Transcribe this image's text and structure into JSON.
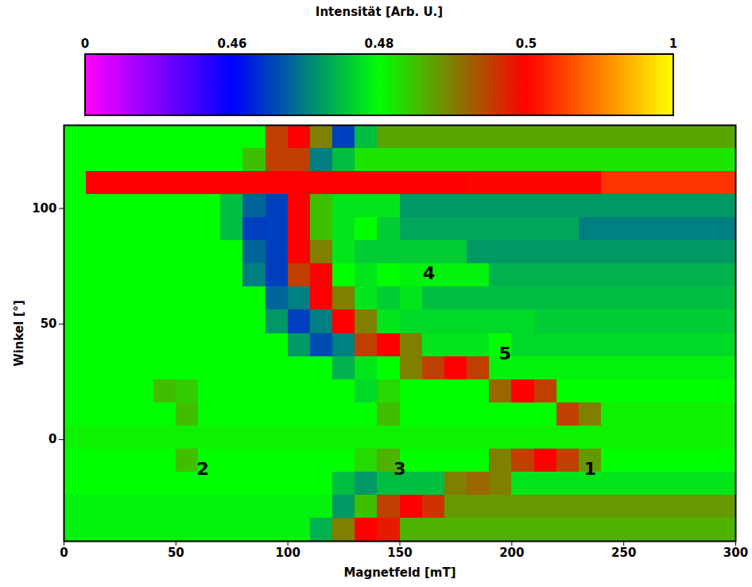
{
  "chart_data": {
    "type": "heatmap",
    "x_label": "Magnetfeld [mT]",
    "y_label": "Winkel [°]",
    "xlim": [
      0,
      300
    ],
    "ylim": [
      -44,
      136
    ],
    "xticks": [
      0,
      50,
      100,
      150,
      200,
      250,
      300
    ],
    "yticks": [
      0,
      50,
      100
    ],
    "x_bins": [
      0,
      10,
      20,
      30,
      40,
      50,
      60,
      70,
      80,
      90,
      100,
      110,
      120,
      130,
      140,
      150,
      160,
      170,
      180,
      190,
      200,
      210,
      220,
      230,
      240,
      250,
      260,
      270,
      280,
      290,
      300
    ],
    "y_bins": [
      -44,
      -34,
      -24,
      -14,
      -4,
      6,
      16,
      26,
      36,
      46,
      56,
      66,
      76,
      86,
      96,
      106,
      116,
      126,
      136
    ],
    "values": [
      [
        0.479,
        0.479,
        0.479,
        0.479,
        0.479,
        0.479,
        0.479,
        0.479,
        0.479,
        0.479,
        0.479,
        0.474,
        0.49,
        0.5,
        0.498,
        0.486,
        0.486,
        0.486,
        0.486,
        0.486,
        0.486,
        0.486,
        0.486,
        0.486,
        0.486,
        0.486,
        0.486,
        0.486,
        0.486,
        0.486
      ],
      [
        0.479,
        0.479,
        0.479,
        0.479,
        0.479,
        0.479,
        0.479,
        0.479,
        0.479,
        0.479,
        0.479,
        0.479,
        0.472,
        0.485,
        0.495,
        0.5,
        0.496,
        0.488,
        0.488,
        0.488,
        0.488,
        0.488,
        0.488,
        0.488,
        0.488,
        0.488,
        0.488,
        0.488,
        0.488,
        0.488
      ],
      [
        0.48,
        0.48,
        0.48,
        0.48,
        0.48,
        0.48,
        0.48,
        0.48,
        0.48,
        0.48,
        0.48,
        0.48,
        0.475,
        0.472,
        0.475,
        0.475,
        0.475,
        0.49,
        0.492,
        0.49,
        0.478,
        0.478,
        0.478,
        0.478,
        0.478,
        0.478,
        0.478,
        0.478,
        0.478,
        0.478
      ],
      [
        0.48,
        0.48,
        0.48,
        0.48,
        0.48,
        0.485,
        0.48,
        0.48,
        0.48,
        0.48,
        0.48,
        0.48,
        0.48,
        0.483,
        0.486,
        0.48,
        0.48,
        0.48,
        0.48,
        0.49,
        0.495,
        0.5,
        0.495,
        0.488,
        0.48,
        0.48,
        0.48,
        0.48,
        0.48,
        0.48
      ],
      [
        0.481,
        0.481,
        0.481,
        0.481,
        0.481,
        0.481,
        0.481,
        0.481,
        0.481,
        0.481,
        0.481,
        0.481,
        0.481,
        0.481,
        0.481,
        0.481,
        0.481,
        0.481,
        0.481,
        0.481,
        0.481,
        0.481,
        0.481,
        0.481,
        0.481,
        0.481,
        0.481,
        0.481,
        0.481,
        0.481
      ],
      [
        0.48,
        0.48,
        0.48,
        0.48,
        0.48,
        0.485,
        0.48,
        0.48,
        0.48,
        0.48,
        0.48,
        0.48,
        0.48,
        0.48,
        0.485,
        0.48,
        0.48,
        0.48,
        0.48,
        0.48,
        0.48,
        0.48,
        0.495,
        0.49,
        0.481,
        0.481,
        0.481,
        0.481,
        0.481,
        0.481
      ],
      [
        0.48,
        0.48,
        0.48,
        0.48,
        0.485,
        0.484,
        0.48,
        0.48,
        0.48,
        0.48,
        0.48,
        0.48,
        0.48,
        0.477,
        0.483,
        0.48,
        0.48,
        0.48,
        0.48,
        0.492,
        0.5,
        0.495,
        0.48,
        0.48,
        0.48,
        0.48,
        0.48,
        0.48,
        0.48,
        0.48
      ],
      [
        0.48,
        0.48,
        0.48,
        0.48,
        0.48,
        0.48,
        0.48,
        0.48,
        0.48,
        0.48,
        0.48,
        0.48,
        0.474,
        0.478,
        0.48,
        0.49,
        0.495,
        0.5,
        0.495,
        0.479,
        0.479,
        0.479,
        0.479,
        0.479,
        0.479,
        0.479,
        0.479,
        0.479,
        0.479,
        0.479
      ],
      [
        0.48,
        0.48,
        0.48,
        0.48,
        0.48,
        0.48,
        0.48,
        0.48,
        0.48,
        0.48,
        0.472,
        0.466,
        0.47,
        0.495,
        0.5,
        0.49,
        0.478,
        0.478,
        0.478,
        0.48,
        0.477,
        0.477,
        0.477,
        0.477,
        0.477,
        0.477,
        0.477,
        0.477,
        0.477,
        0.477
      ],
      [
        0.48,
        0.48,
        0.48,
        0.48,
        0.48,
        0.48,
        0.48,
        0.48,
        0.48,
        0.472,
        0.465,
        0.47,
        0.5,
        0.49,
        0.478,
        0.477,
        0.477,
        0.477,
        0.477,
        0.477,
        0.477,
        0.476,
        0.476,
        0.476,
        0.476,
        0.476,
        0.476,
        0.476,
        0.476,
        0.476
      ],
      [
        0.48,
        0.48,
        0.48,
        0.48,
        0.48,
        0.48,
        0.48,
        0.48,
        0.48,
        0.468,
        0.47,
        0.5,
        0.49,
        0.478,
        0.476,
        0.478,
        0.475,
        0.475,
        0.475,
        0.475,
        0.475,
        0.475,
        0.475,
        0.475,
        0.475,
        0.475,
        0.475,
        0.475,
        0.475,
        0.475
      ],
      [
        0.48,
        0.48,
        0.48,
        0.48,
        0.48,
        0.48,
        0.48,
        0.48,
        0.47,
        0.465,
        0.495,
        0.5,
        0.48,
        0.478,
        0.48,
        0.479,
        0.479,
        0.479,
        0.479,
        0.474,
        0.474,
        0.474,
        0.474,
        0.474,
        0.474,
        0.474,
        0.474,
        0.474,
        0.474,
        0.474
      ],
      [
        0.48,
        0.48,
        0.48,
        0.48,
        0.48,
        0.48,
        0.48,
        0.48,
        0.468,
        0.465,
        0.5,
        0.49,
        0.478,
        0.476,
        0.476,
        0.476,
        0.476,
        0.476,
        0.472,
        0.472,
        0.472,
        0.472,
        0.472,
        0.472,
        0.472,
        0.472,
        0.472,
        0.472,
        0.472,
        0.472
      ],
      [
        0.48,
        0.48,
        0.48,
        0.48,
        0.48,
        0.48,
        0.48,
        0.475,
        0.465,
        0.465,
        0.5,
        0.485,
        0.478,
        0.48,
        0.476,
        0.473,
        0.473,
        0.473,
        0.473,
        0.473,
        0.473,
        0.473,
        0.473,
        0.47,
        0.47,
        0.47,
        0.47,
        0.47,
        0.47,
        0.47
      ],
      [
        0.48,
        0.48,
        0.48,
        0.48,
        0.48,
        0.48,
        0.48,
        0.475,
        0.468,
        0.465,
        0.5,
        0.485,
        0.478,
        0.478,
        0.478,
        0.472,
        0.472,
        0.472,
        0.472,
        0.472,
        0.472,
        0.472,
        0.472,
        0.472,
        0.472,
        0.472,
        0.472,
        0.472,
        0.472,
        0.472
      ],
      [
        0.48,
        0.5,
        0.5,
        0.5,
        0.5,
        0.5,
        0.5,
        0.5,
        0.5,
        0.5,
        0.5,
        0.5,
        0.5,
        0.5,
        0.5,
        0.5,
        0.5,
        0.5,
        0.51,
        0.51,
        0.51,
        0.51,
        0.51,
        0.51,
        0.6,
        0.6,
        0.6,
        0.6,
        0.6,
        0.6
      ],
      [
        0.48,
        0.48,
        0.48,
        0.48,
        0.48,
        0.48,
        0.48,
        0.48,
        0.485,
        0.495,
        0.495,
        0.47,
        0.475,
        0.482,
        0.482,
        0.482,
        0.482,
        0.482,
        0.482,
        0.482,
        0.482,
        0.482,
        0.482,
        0.482,
        0.482,
        0.482,
        0.482,
        0.482,
        0.482,
        0.482
      ],
      [
        0.48,
        0.48,
        0.48,
        0.48,
        0.48,
        0.48,
        0.48,
        0.48,
        0.48,
        0.495,
        0.5,
        0.49,
        0.465,
        0.475,
        0.487,
        0.487,
        0.487,
        0.487,
        0.487,
        0.487,
        0.487,
        0.487,
        0.487,
        0.487,
        0.487,
        0.487,
        0.487,
        0.487,
        0.487,
        0.487
      ]
    ],
    "colorbar": {
      "label": "Intensität [Arb. U.]",
      "range": [
        0,
        1
      ],
      "ticks": [
        0,
        0.46,
        0.48,
        0.5,
        1
      ]
    },
    "annotations": [
      {
        "text": "1",
        "x": 235,
        "y": -13
      },
      {
        "text": "2",
        "x": 62,
        "y": -13
      },
      {
        "text": "3",
        "x": 150,
        "y": -13
      },
      {
        "text": "4",
        "x": 163,
        "y": 72
      },
      {
        "text": "5",
        "x": 197,
        "y": 37
      }
    ]
  }
}
